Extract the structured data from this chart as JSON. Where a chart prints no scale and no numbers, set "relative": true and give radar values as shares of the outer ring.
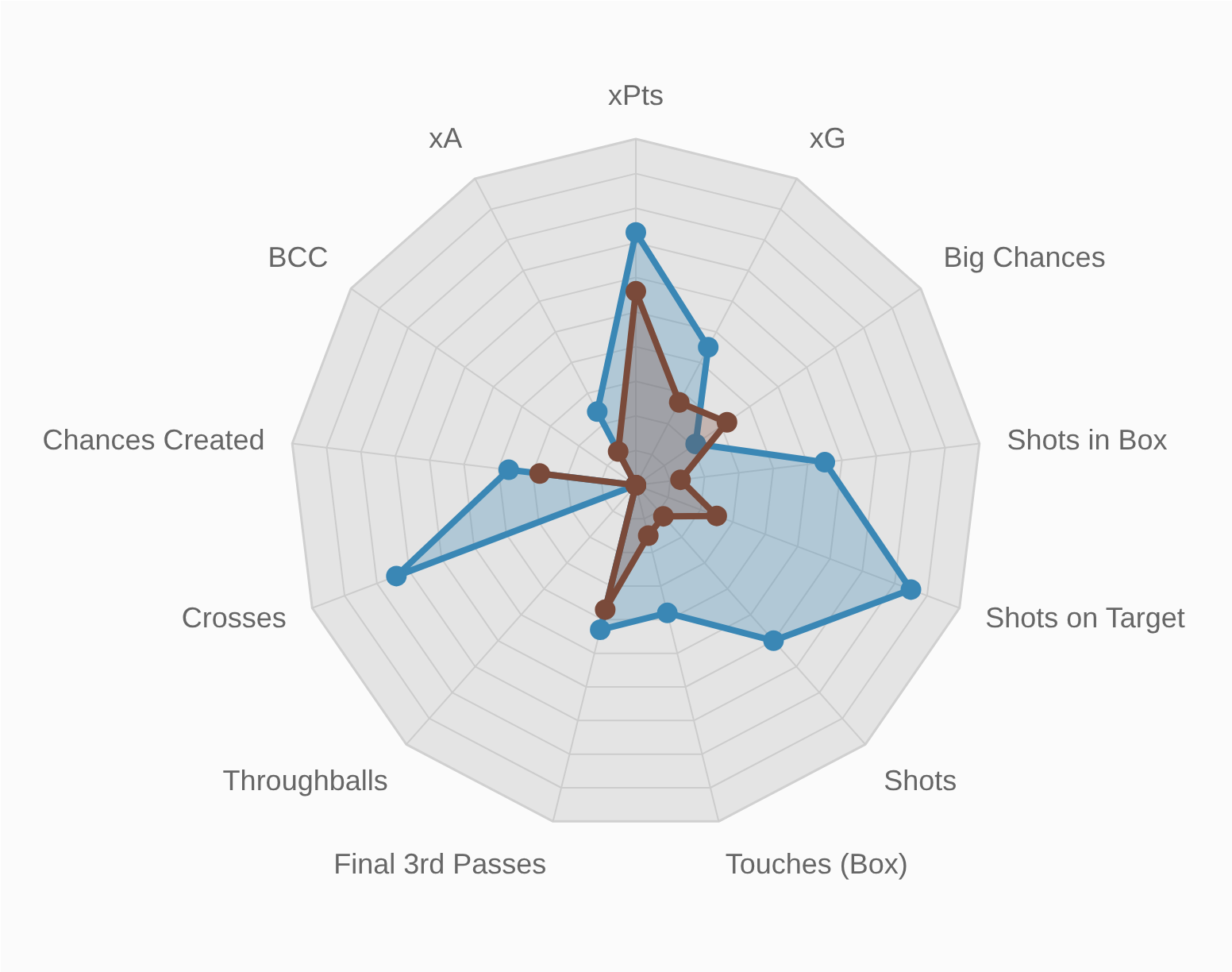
{
  "chart_data": {
    "type": "radar",
    "relative": true,
    "categories": [
      "xPts",
      "xG",
      "Big Chances",
      "Shots in Box",
      "Shots on Target",
      "Shots",
      "Touches (Box)",
      "Final 3rd Passes",
      "Throughballs",
      "Crosses",
      "Chances Created",
      "BCC",
      "xA"
    ],
    "series": [
      {
        "color": "#3a87b5",
        "values": [
          0.73,
          0.45,
          0.21,
          0.55,
          0.85,
          0.6,
          0.38,
          0.43,
          0,
          0.74,
          0.37,
          0,
          0.24
        ]
      },
      {
        "color": "#7a4a3a",
        "values": [
          0.56,
          0.27,
          0.32,
          0.13,
          0.25,
          0.12,
          0.15,
          0.37,
          0,
          0,
          0.28,
          0,
          0.11
        ]
      }
    ],
    "marker": "circle",
    "grid": true
  }
}
